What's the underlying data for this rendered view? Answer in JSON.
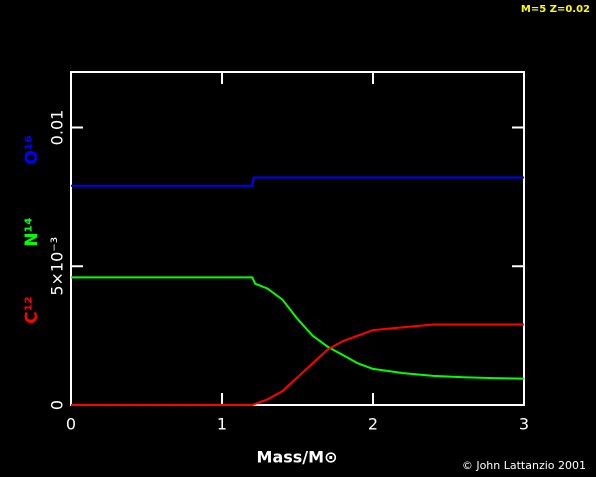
{
  "chart_data": {
    "type": "line",
    "corner_note": "M=5 Z=0.02",
    "credit": "© John Lattanzio 2001",
    "xlabel": "Mass/M⊙",
    "xlim": [
      0,
      3
    ],
    "xticks": [
      0,
      1,
      2,
      3
    ],
    "ylim": [
      0,
      0.012
    ],
    "yticks": [
      0,
      {
        "value": 0.005,
        "label": "5×10⁻³"
      },
      0.01
    ],
    "series": [
      {
        "name": "O¹⁶",
        "color": "#0000ff",
        "x": [
          0,
          1.2,
          1.21,
          3
        ],
        "values": [
          0.0079,
          0.0079,
          0.0082,
          0.0082
        ]
      },
      {
        "name": "N¹⁴",
        "color": "#00ff00",
        "x": [
          0,
          1.2,
          1.22,
          1.3,
          1.4,
          1.5,
          1.6,
          1.7,
          1.8,
          1.9,
          2.0,
          2.2,
          2.4,
          2.6,
          2.8,
          3.0
        ],
        "values": [
          0.0046,
          0.0046,
          0.00437,
          0.0042,
          0.0038,
          0.0031,
          0.0025,
          0.0021,
          0.0018,
          0.0015,
          0.0013,
          0.00115,
          0.00105,
          0.001,
          0.00097,
          0.00095
        ]
      },
      {
        "name": "C¹²",
        "color": "#ff0000",
        "x": [
          0,
          1.2,
          1.3,
          1.4,
          1.5,
          1.6,
          1.7,
          1.8,
          1.9,
          2.0,
          2.2,
          2.4,
          2.6,
          2.8,
          3.0
        ],
        "values": [
          0,
          0,
          0.0002,
          0.0005,
          0.001,
          0.0015,
          0.002,
          0.0023,
          0.0025,
          0.0027,
          0.0028,
          0.0029,
          0.0029,
          0.0029,
          0.0029
        ]
      }
    ]
  }
}
